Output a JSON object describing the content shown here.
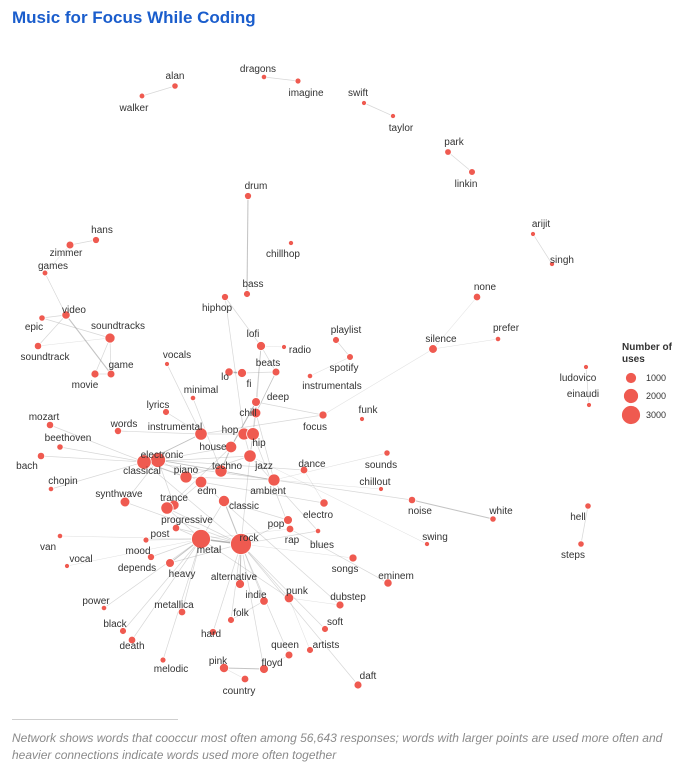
{
  "chart_data": {
    "type": "network",
    "title": "Music for Focus While Coding",
    "caption": "Network shows words that cooccur most often among 56,643 responses; words with larger points are used more often and heavier connections indicate words used more often together",
    "legend": {
      "title_lines": [
        "Number of",
        "uses"
      ],
      "entries": [
        1000,
        2000,
        3000
      ],
      "placement": "right"
    },
    "node_color": "#ef5a50",
    "nodes": [
      {
        "word": "alan",
        "uses": 280
      },
      {
        "word": "walker",
        "uses": 220
      },
      {
        "word": "dragons",
        "uses": 200
      },
      {
        "word": "imagine",
        "uses": 240
      },
      {
        "word": "swift",
        "uses": 160
      },
      {
        "word": "taylor",
        "uses": 180
      },
      {
        "word": "park",
        "uses": 300
      },
      {
        "word": "linkin",
        "uses": 320
      },
      {
        "word": "drum",
        "uses": 340
      },
      {
        "word": "chillhop",
        "uses": 180
      },
      {
        "word": "arijit",
        "uses": 170
      },
      {
        "word": "singh",
        "uses": 180
      },
      {
        "word": "hans",
        "uses": 340
      },
      {
        "word": "zimmer",
        "uses": 420
      },
      {
        "word": "games",
        "uses": 220
      },
      {
        "word": "none",
        "uses": 380
      },
      {
        "word": "bass",
        "uses": 330
      },
      {
        "word": "video",
        "uses": 480
      },
      {
        "word": "epic",
        "uses": 280
      },
      {
        "word": "soundtracks",
        "uses": 700
      },
      {
        "word": "hiphop",
        "uses": 340
      },
      {
        "word": "prefer",
        "uses": 200
      },
      {
        "word": "playlist",
        "uses": 330
      },
      {
        "word": "silence",
        "uses": 520
      },
      {
        "word": "soundtrack",
        "uses": 370
      },
      {
        "word": "lofi",
        "uses": 560
      },
      {
        "word": "radio",
        "uses": 170
      },
      {
        "word": "vocals",
        "uses": 150
      },
      {
        "word": "game",
        "uses": 420
      },
      {
        "word": "spotify",
        "uses": 320
      },
      {
        "word": "movie",
        "uses": 440
      },
      {
        "word": "beats",
        "uses": 420
      },
      {
        "word": "ludovico",
        "uses": 170
      },
      {
        "word": "lo",
        "uses": 480
      },
      {
        "word": "fi",
        "uses": 560
      },
      {
        "word": "instrumentals",
        "uses": 200
      },
      {
        "word": "einaudi",
        "uses": 150
      },
      {
        "word": "minimal",
        "uses": 200
      },
      {
        "word": "deep",
        "uses": 530
      },
      {
        "word": "lyrics",
        "uses": 330
      },
      {
        "word": "chill",
        "uses": 640
      },
      {
        "word": "funk",
        "uses": 130
      },
      {
        "word": "mozart",
        "uses": 370
      },
      {
        "word": "focus",
        "uses": 450
      },
      {
        "word": "words",
        "uses": 360
      },
      {
        "word": "instrumental",
        "uses": 1050
      },
      {
        "word": "beethoven",
        "uses": 280
      },
      {
        "word": "hop",
        "uses": 1000
      },
      {
        "word": "hip",
        "uses": 1100
      },
      {
        "word": "house",
        "uses": 900
      },
      {
        "word": "bach",
        "uses": 370
      },
      {
        "word": "electronic",
        "uses": 1550
      },
      {
        "word": "sounds",
        "uses": 270
      },
      {
        "word": "dance",
        "uses": 400
      },
      {
        "word": "jazz",
        "uses": 1050
      },
      {
        "word": "techno",
        "uses": 1020
      },
      {
        "word": "classical",
        "uses": 1420
      },
      {
        "word": "piano",
        "uses": 1000
      },
      {
        "word": "chopin",
        "uses": 200
      },
      {
        "word": "chillout",
        "uses": 150
      },
      {
        "word": "ambient",
        "uses": 1000
      },
      {
        "word": "edm",
        "uses": 920
      },
      {
        "word": "trance",
        "uses": 700
      },
      {
        "word": "synthwave",
        "uses": 650
      },
      {
        "word": "noise",
        "uses": 370
      },
      {
        "word": "classic",
        "uses": 850
      },
      {
        "word": "electro",
        "uses": 480
      },
      {
        "word": "white",
        "uses": 280
      },
      {
        "word": "progressive",
        "uses": 1030
      },
      {
        "word": "hell",
        "uses": 280
      },
      {
        "word": "pop",
        "uses": 540
      },
      {
        "word": "post",
        "uses": 380
      },
      {
        "word": "rap",
        "uses": 400
      },
      {
        "word": "swing",
        "uses": 180
      },
      {
        "word": "van",
        "uses": 200
      },
      {
        "word": "rock",
        "uses": 3000
      },
      {
        "word": "metal",
        "uses": 2450
      },
      {
        "word": "blues",
        "uses": 200
      },
      {
        "word": "mood",
        "uses": 240
      },
      {
        "word": "steps",
        "uses": 280
      },
      {
        "word": "vocal",
        "uses": 150
      },
      {
        "word": "depends",
        "uses": 350
      },
      {
        "word": "heavy",
        "uses": 530
      },
      {
        "word": "songs",
        "uses": 450
      },
      {
        "word": "eminem",
        "uses": 470
      },
      {
        "word": "alternative",
        "uses": 560
      },
      {
        "word": "indie",
        "uses": 500
      },
      {
        "word": "punk",
        "uses": 620
      },
      {
        "word": "dubstep",
        "uses": 440
      },
      {
        "word": "power",
        "uses": 200
      },
      {
        "word": "metallica",
        "uses": 390
      },
      {
        "word": "folk",
        "uses": 330
      },
      {
        "word": "black",
        "uses": 330
      },
      {
        "word": "hard",
        "uses": 350
      },
      {
        "word": "soft",
        "uses": 330
      },
      {
        "word": "death",
        "uses": 390
      },
      {
        "word": "queen",
        "uses": 420
      },
      {
        "word": "artists",
        "uses": 330
      },
      {
        "word": "melodic",
        "uses": 240
      },
      {
        "word": "pink",
        "uses": 580
      },
      {
        "word": "floyd",
        "uses": 550
      },
      {
        "word": "daft",
        "uses": 430
      },
      {
        "word": "country",
        "uses": 400
      }
    ],
    "edges": [
      [
        "alan",
        "walker",
        1
      ],
      [
        "dragons",
        "imagine",
        1
      ],
      [
        "swift",
        "taylor",
        1
      ],
      [
        "park",
        "linkin",
        1
      ],
      [
        "arijit",
        "singh",
        1
      ],
      [
        "ludovico",
        "einaudi",
        1
      ],
      [
        "hell",
        "steps",
        1
      ],
      [
        "drum",
        "bass",
        2
      ],
      [
        "hans",
        "zimmer",
        1
      ],
      [
        "zimmer",
        "games",
        0.5
      ],
      [
        "video",
        "game",
        2
      ],
      [
        "video",
        "games",
        1
      ],
      [
        "video",
        "epic",
        1
      ],
      [
        "video",
        "soundtrack",
        1
      ],
      [
        "soundtracks",
        "game",
        1
      ],
      [
        "soundtracks",
        "movie",
        1
      ],
      [
        "soundtracks",
        "epic",
        1
      ],
      [
        "soundtracks",
        "soundtrack",
        0.5
      ],
      [
        "game",
        "movie",
        1
      ],
      [
        "none",
        "silence",
        0.5
      ],
      [
        "silence",
        "prefer",
        0.5
      ],
      [
        "silence",
        "focus",
        0.5
      ],
      [
        "lo",
        "fi",
        3
      ],
      [
        "lofi",
        "hiphop",
        1
      ],
      [
        "lofi",
        "hip",
        1
      ],
      [
        "lofi",
        "beats",
        1
      ],
      [
        "lofi",
        "radio",
        0.5
      ],
      [
        "lofi",
        "chill",
        1
      ],
      [
        "beats",
        "fi",
        1
      ],
      [
        "beats",
        "chill",
        1
      ],
      [
        "hip",
        "hop",
        3
      ],
      [
        "hiphop",
        "hop",
        1
      ],
      [
        "house",
        "techno",
        2
      ],
      [
        "house",
        "deep",
        1
      ],
      [
        "house",
        "electronic",
        1
      ],
      [
        "electronic",
        "edm",
        1
      ],
      [
        "electronic",
        "classical",
        1
      ],
      [
        "electronic",
        "dance",
        1
      ],
      [
        "electronic",
        "ambient",
        1
      ],
      [
        "electronic",
        "trance",
        1
      ],
      [
        "classical",
        "piano",
        2
      ],
      [
        "classical",
        "mozart",
        1
      ],
      [
        "classical",
        "bach",
        1
      ],
      [
        "classical",
        "chopin",
        1
      ],
      [
        "classical",
        "beethoven",
        1
      ],
      [
        "classical",
        "instrumental",
        1
      ],
      [
        "classical",
        "rock",
        1
      ],
      [
        "piano",
        "jazz",
        1
      ],
      [
        "piano",
        "ambient",
        1
      ],
      [
        "jazz",
        "hop",
        1
      ],
      [
        "jazz",
        "hip",
        1
      ],
      [
        "jazz",
        "blues",
        1
      ],
      [
        "jazz",
        "swing",
        0.5
      ],
      [
        "jazz",
        "chill",
        1
      ],
      [
        "jazz",
        "classical",
        1
      ],
      [
        "chill",
        "beats",
        1
      ],
      [
        "deep",
        "house",
        2
      ],
      [
        "deep",
        "focus",
        1
      ],
      [
        "ambient",
        "chill",
        1
      ],
      [
        "ambient",
        "sounds",
        0.5
      ],
      [
        "ambient",
        "noise",
        1
      ],
      [
        "ambient",
        "chillout",
        0.5
      ],
      [
        "ambient",
        "electronic",
        1
      ],
      [
        "ambient",
        "classical",
        1
      ],
      [
        "noise",
        "white",
        2
      ],
      [
        "progressive",
        "trance",
        1
      ],
      [
        "progressive",
        "metal",
        1
      ],
      [
        "progressive",
        "rock",
        1
      ],
      [
        "progressive",
        "house",
        1
      ],
      [
        "classic",
        "rock",
        2
      ],
      [
        "classic",
        "pop",
        1
      ],
      [
        "classic",
        "metal",
        1
      ],
      [
        "rock",
        "metal",
        3
      ],
      [
        "rock",
        "punk",
        1
      ],
      [
        "rock",
        "alternative",
        2
      ],
      [
        "rock",
        "indie",
        1
      ],
      [
        "rock",
        "pop",
        1
      ],
      [
        "rock",
        "hard",
        1
      ],
      [
        "rock",
        "soft",
        1
      ],
      [
        "rock",
        "floyd",
        1
      ],
      [
        "rock",
        "daft",
        1
      ],
      [
        "rock",
        "queen",
        1
      ],
      [
        "rock",
        "jazz",
        1
      ],
      [
        "rock",
        "heavy",
        1
      ],
      [
        "rock",
        "post",
        1
      ],
      [
        "rock",
        "folk",
        1
      ],
      [
        "rock",
        "blues",
        1
      ],
      [
        "metal",
        "heavy",
        2
      ],
      [
        "metal",
        "death",
        1
      ],
      [
        "metal",
        "black",
        1
      ],
      [
        "metal",
        "power",
        1
      ],
      [
        "metal",
        "metallica",
        1
      ],
      [
        "metal",
        "melodic",
        1
      ],
      [
        "metal",
        "punk",
        1
      ],
      [
        "metal",
        "post",
        1
      ],
      [
        "metal",
        "depends",
        1
      ],
      [
        "metal",
        "mood",
        1
      ],
      [
        "pop",
        "rap",
        1
      ],
      [
        "rap",
        "hip",
        1
      ],
      [
        "rap",
        "eminem",
        1
      ],
      [
        "punk",
        "dubstep",
        0.5
      ],
      [
        "punk",
        "artists",
        0.5
      ],
      [
        "pink",
        "floyd",
        2
      ],
      [
        "pink",
        "country",
        0.5
      ],
      [
        "electro",
        "dance",
        0.5
      ],
      [
        "edm",
        "dubstep",
        1
      ],
      [
        "edm",
        "trance",
        1
      ],
      [
        "edm",
        "electro",
        1
      ],
      [
        "instrumental",
        "lyrics",
        1
      ],
      [
        "instrumental",
        "words",
        1
      ],
      [
        "instrumental",
        "vocals",
        1
      ],
      [
        "instrumental",
        "focus",
        1
      ],
      [
        "instrumental",
        "hip",
        1
      ],
      [
        "instrumental",
        "classical",
        1
      ],
      [
        "synthwave",
        "electronic",
        1
      ],
      [
        "synthwave",
        "rock",
        1
      ],
      [
        "minimal",
        "techno",
        1
      ],
      [
        "spotify",
        "playlist",
        1
      ],
      [
        "spotify",
        "instrumentals",
        0.5
      ],
      [
        "songs",
        "rock",
        0.5
      ],
      [
        "queen",
        "floyd",
        0.5
      ],
      [
        "indie",
        "folk",
        1
      ],
      [
        "metal",
        "rap",
        0.5
      ],
      [
        "van",
        "metal",
        0.5
      ],
      [
        "vocal",
        "metal",
        0.5
      ]
    ]
  }
}
